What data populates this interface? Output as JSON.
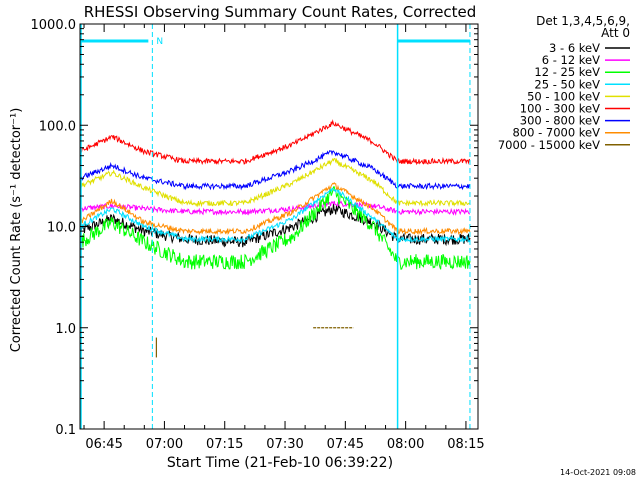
{
  "chart_data": {
    "type": "line",
    "title": "RHESSI Observing Summary Count Rates, Corrected",
    "xlabel": "Start Time (21-Feb-10 06:39:22)",
    "ylabel": "Corrected Count Rate (s⁻¹ detector⁻¹)",
    "y_scale": "log",
    "ylim": [
      0.1,
      1000.0
    ],
    "xlim": [
      "06:39",
      "08:18"
    ],
    "x_ticks": [
      "06:45",
      "07:00",
      "07:15",
      "07:30",
      "07:45",
      "08:00",
      "08:15"
    ],
    "y_ticks": [
      "0.1",
      "1.0",
      "10.0",
      "100.0",
      "1000.0"
    ],
    "grid": false,
    "legend_header": [
      "Det 1,3,4,5,6,9,",
      "Att 0"
    ],
    "legend_position": "right",
    "timestamp": "14-Oct-2021 09:08",
    "flag_markers": {
      "label": "N",
      "color": "#00e0ff",
      "bars": [
        [
          "06:39",
          "06:56"
        ],
        [
          "07:58",
          "08:16"
        ]
      ],
      "dashed_lines": [
        "06:57",
        "08:16"
      ],
      "solid_lines": [
        "06:39",
        "07:58"
      ]
    },
    "series": [
      {
        "name": "3 - 6 keV",
        "color": "#000000",
        "x": [
          "06:39",
          "06:47",
          "06:55",
          "07:05",
          "07:20",
          "07:32",
          "07:42",
          "07:52",
          "07:58",
          "08:16"
        ],
        "values": [
          9,
          12,
          9,
          7.5,
          7,
          10,
          15,
          11,
          7.5,
          7.5
        ]
      },
      {
        "name": "6 - 12 keV",
        "color": "#ff00ff",
        "x": [
          "06:39",
          "06:47",
          "06:55",
          "07:05",
          "07:20",
          "07:32",
          "07:42",
          "07:52",
          "07:58",
          "08:16"
        ],
        "values": [
          15,
          16,
          15,
          14,
          14,
          15,
          17,
          16,
          14,
          14
        ]
      },
      {
        "name": "12 - 25 keV",
        "color": "#00ff00",
        "x": [
          "06:39",
          "06:47",
          "06:55",
          "07:05",
          "07:20",
          "07:32",
          "07:42",
          "07:52",
          "07:58",
          "08:16"
        ],
        "values": [
          7,
          11,
          7,
          4.5,
          4.5,
          8,
          22,
          10,
          4.5,
          4.5
        ]
      },
      {
        "name": "25 - 50 keV",
        "color": "#00e0ff",
        "x": [
          "06:39",
          "06:47",
          "06:55",
          "07:05",
          "07:20",
          "07:32",
          "07:42",
          "07:52",
          "07:58",
          "08:16"
        ],
        "values": [
          10,
          15,
          10,
          7.5,
          7.5,
          12,
          24,
          12,
          7.5,
          7.5
        ]
      },
      {
        "name": "50 - 100 keV",
        "color": "#e0e000",
        "x": [
          "06:39",
          "06:47",
          "06:55",
          "07:05",
          "07:20",
          "07:32",
          "07:42",
          "07:52",
          "07:58",
          "08:16"
        ],
        "values": [
          25,
          34,
          24,
          17,
          17,
          27,
          45,
          28,
          17,
          17
        ]
      },
      {
        "name": "100 - 300 keV",
        "color": "#ff0000",
        "x": [
          "06:39",
          "06:47",
          "06:55",
          "07:05",
          "07:20",
          "07:32",
          "07:42",
          "07:52",
          "07:58",
          "08:16"
        ],
        "values": [
          55,
          77,
          55,
          44,
          44,
          65,
          105,
          68,
          44,
          44
        ]
      },
      {
        "name": "300 - 800 keV",
        "color": "#0000ff",
        "x": [
          "06:39",
          "06:47",
          "06:55",
          "07:05",
          "07:20",
          "07:32",
          "07:42",
          "07:52",
          "07:58",
          "08:16"
        ],
        "values": [
          30,
          40,
          30,
          25,
          25,
          36,
          55,
          37,
          25,
          25
        ]
      },
      {
        "name": "800 - 7000 keV",
        "color": "#ff8c00",
        "x": [
          "06:39",
          "06:47",
          "06:55",
          "07:05",
          "07:20",
          "07:32",
          "07:42",
          "07:52",
          "07:58",
          "08:16"
        ],
        "values": [
          11,
          18,
          11,
          9,
          9,
          14,
          26,
          15,
          9,
          9
        ]
      },
      {
        "name": "7000 - 15000 keV",
        "color": "#806000",
        "x": [
          "06:58",
          "06:58",
          "07:37",
          "07:47"
        ],
        "values": [
          0.8,
          0.7,
          1.0,
          1.0
        ]
      }
    ]
  }
}
